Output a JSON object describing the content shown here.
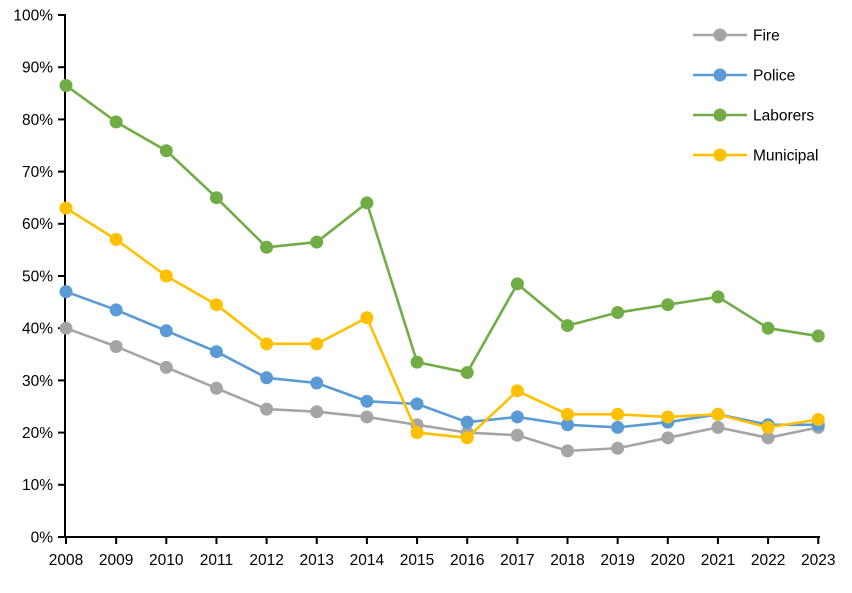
{
  "chart_data": {
    "type": "line",
    "title": "",
    "xlabel": "",
    "ylabel": "",
    "categories": [
      "2008",
      "2009",
      "2010",
      "2011",
      "2012",
      "2013",
      "2014",
      "2015",
      "2016",
      "2017",
      "2018",
      "2019",
      "2020",
      "2021",
      "2022",
      "2023"
    ],
    "series": [
      {
        "name": "Fire",
        "color": "#A5A5A5",
        "values": [
          40,
          36.5,
          32.5,
          28.5,
          24.5,
          24,
          23,
          21.5,
          20,
          19.5,
          16.5,
          17,
          19,
          21,
          19,
          21
        ]
      },
      {
        "name": "Police",
        "color": "#5B9BD5",
        "values": [
          47,
          43.5,
          39.5,
          35.5,
          30.5,
          29.5,
          26,
          25.5,
          22,
          23,
          21.5,
          21,
          22,
          23.5,
          21.5,
          21.5
        ]
      },
      {
        "name": "Laborers",
        "color": "#70AD47",
        "values": [
          86.5,
          79.5,
          74,
          65,
          55.5,
          56.5,
          64,
          33.5,
          31.5,
          48.5,
          40.5,
          43,
          44.5,
          46,
          40,
          38.5
        ]
      },
      {
        "name": "Municipal",
        "color": "#FFC000",
        "values": [
          63,
          57,
          50,
          44.5,
          37,
          37,
          42,
          20,
          19,
          28,
          23.5,
          23.5,
          23,
          23.5,
          21,
          22.5
        ]
      }
    ],
    "ylim": [
      0,
      100
    ],
    "y_tick_labels": [
      "0%",
      "10%",
      "20%",
      "30%",
      "40%",
      "50%",
      "60%",
      "70%",
      "80%",
      "90%",
      "100%"
    ],
    "grid": false,
    "legend_position": "top-right",
    "legend_entries": [
      "Fire",
      "Police",
      "Laborers",
      "Municipal"
    ],
    "axis_color": "#000000",
    "background_color": "#FFFFFF"
  }
}
